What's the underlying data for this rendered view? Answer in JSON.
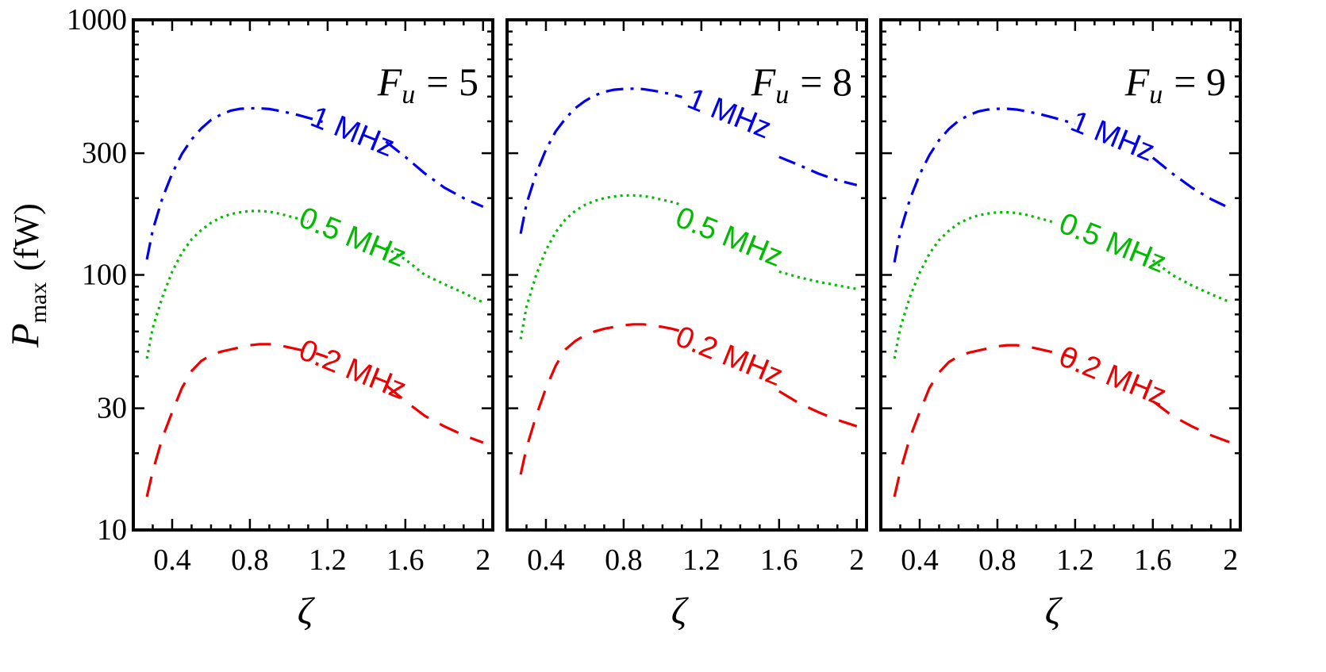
{
  "ylabel_main": "P",
  "ylabel_sub": "max",
  "ylabel_unit": "(fW)",
  "xlabel": "ζ",
  "chart_data": [
    {
      "type": "line",
      "annotation": {
        "symbol": "F",
        "subscript": "u",
        "relation": "= 5"
      },
      "xlabel": "ζ",
      "ylabel": "Pmax (fW)",
      "yscale": "log",
      "xlim": [
        0.2,
        2.05
      ],
      "ylim": [
        10,
        1000
      ],
      "xticks": [
        0.4,
        0.8,
        1.2,
        1.6,
        2
      ],
      "xtick_labels": [
        "0.4",
        "0.8",
        "1.2",
        "1.6",
        "2"
      ],
      "yticks": [
        10,
        30,
        100,
        300,
        1000
      ],
      "ytick_labels": [
        "10",
        "30",
        "100",
        "300",
        "1000"
      ],
      "series": [
        {
          "name": "1 MHz",
          "label": "1 MHz",
          "color": "#0000ee",
          "style": "dashdot",
          "x": [
            0.27,
            0.3,
            0.35,
            0.4,
            0.45,
            0.5,
            0.55,
            0.6,
            0.65,
            0.7,
            0.75,
            0.8,
            0.85,
            0.9,
            0.95,
            1.0,
            1.05,
            1.1,
            1.15,
            1.2,
            1.25,
            1.3,
            1.35,
            1.4,
            1.5,
            1.6,
            1.7,
            1.8,
            1.9,
            2.0
          ],
          "y": [
            115,
            150,
            200,
            250,
            298,
            340,
            375,
            405,
            425,
            440,
            448,
            450,
            450,
            447,
            440,
            432,
            423,
            413,
            403,
            393,
            383,
            373,
            363,
            353,
            333,
            290,
            250,
            220,
            200,
            185
          ]
        },
        {
          "name": "0.5 MHz",
          "label": "0.5 MHz",
          "color": "#00bb00",
          "style": "dotted",
          "x": [
            0.27,
            0.3,
            0.35,
            0.4,
            0.45,
            0.5,
            0.55,
            0.6,
            0.65,
            0.7,
            0.75,
            0.8,
            0.85,
            0.9,
            0.95,
            1.0,
            1.05,
            1.1,
            1.5,
            1.6,
            1.7,
            1.8,
            1.9,
            2.0
          ],
          "y": [
            47,
            62,
            82,
            103,
            122,
            138,
            150,
            160,
            168,
            173,
            176,
            178,
            178,
            177,
            174,
            170,
            166,
            162,
            128,
            115,
            100,
            92,
            85,
            78
          ]
        },
        {
          "name": "0.2 MHz",
          "label": "0.2 MHz",
          "color": "#ee0000",
          "style": "dashed",
          "x": [
            0.27,
            0.3,
            0.35,
            0.4,
            0.45,
            0.5,
            0.55,
            0.6,
            0.65,
            0.7,
            0.75,
            0.8,
            0.85,
            0.9,
            0.95,
            1.0,
            1.05,
            1.1,
            1.15,
            1.2,
            1.5,
            1.6,
            1.7,
            1.8,
            1.9,
            2.0
          ],
          "y": [
            13.5,
            17,
            23,
            29,
            36,
            42,
            46,
            48.5,
            50,
            51,
            52,
            53,
            53.5,
            53.5,
            53,
            52,
            51,
            50,
            49,
            47.5,
            37,
            32,
            28,
            25.5,
            23.5,
            22
          ]
        }
      ]
    },
    {
      "type": "line",
      "annotation": {
        "symbol": "F",
        "subscript": "u",
        "relation": "= 8"
      },
      "xlabel": "ζ",
      "ylabel": "Pmax (fW)",
      "yscale": "log",
      "xlim": [
        0.2,
        2.05
      ],
      "ylim": [
        10,
        1000
      ],
      "xticks": [
        0.4,
        0.8,
        1.2,
        1.6,
        2
      ],
      "xtick_labels": [
        "0.4",
        "0.8",
        "1.2",
        "1.6",
        "2"
      ],
      "yticks": [
        10,
        30,
        100,
        300,
        1000
      ],
      "ytick_labels": [
        "10",
        "30",
        "100",
        "300",
        "1000"
      ],
      "series": [
        {
          "name": "1 MHz",
          "label": "1 MHz",
          "color": "#0000ee",
          "style": "dashdot",
          "x": [
            0.27,
            0.3,
            0.35,
            0.4,
            0.45,
            0.5,
            0.55,
            0.6,
            0.65,
            0.7,
            0.75,
            0.8,
            0.85,
            0.9,
            0.95,
            1.0,
            1.05,
            1.1,
            1.15,
            1.2,
            1.25,
            1.3,
            1.35,
            1.4,
            1.6,
            1.7,
            1.8,
            1.9,
            2.0
          ],
          "y": [
            145,
            190,
            250,
            310,
            365,
            410,
            450,
            480,
            505,
            522,
            532,
            536,
            537,
            535,
            528,
            520,
            510,
            498,
            485,
            472,
            458,
            444,
            430,
            415,
            290,
            270,
            250,
            235,
            225
          ]
        },
        {
          "name": "0.5 MHz",
          "label": "0.5 MHz",
          "color": "#00bb00",
          "style": "dotted",
          "x": [
            0.27,
            0.3,
            0.35,
            0.4,
            0.45,
            0.5,
            0.55,
            0.6,
            0.65,
            0.7,
            0.75,
            0.8,
            0.85,
            0.9,
            0.95,
            1.0,
            1.05,
            1.1,
            1.6,
            1.7,
            1.8,
            1.9,
            2.0
          ],
          "y": [
            56,
            75,
            100,
            125,
            147,
            165,
            178,
            188,
            195,
            200,
            203,
            205,
            205,
            204,
            201,
            197,
            193,
            188,
            103,
            98,
            94,
            91,
            88
          ]
        },
        {
          "name": "0.2 MHz",
          "label": "0.2 MHz",
          "color": "#ee0000",
          "style": "dashed",
          "x": [
            0.27,
            0.3,
            0.35,
            0.4,
            0.45,
            0.5,
            0.55,
            0.6,
            0.65,
            0.7,
            0.75,
            0.8,
            0.85,
            0.9,
            0.95,
            1.0,
            1.05,
            1.1,
            1.15,
            1.2,
            1.6,
            1.7,
            1.8,
            1.9,
            2.0
          ],
          "y": [
            16.5,
            21,
            28,
            36,
            44,
            51,
            55,
            58,
            60,
            61.5,
            62.5,
            63.5,
            64,
            64,
            63.5,
            62.5,
            61.5,
            60,
            58.5,
            57,
            35,
            31.5,
            29,
            27,
            25.5
          ]
        }
      ]
    },
    {
      "type": "line",
      "annotation": {
        "symbol": "F",
        "subscript": "u",
        "relation": "= 9"
      },
      "xlabel": "ζ",
      "ylabel": "Pmax (fW)",
      "yscale": "log",
      "xlim": [
        0.2,
        2.05
      ],
      "ylim": [
        10,
        1000
      ],
      "xticks": [
        0.4,
        0.8,
        1.2,
        1.6,
        2
      ],
      "xtick_labels": [
        "0.4",
        "0.8",
        "1.2",
        "1.6",
        "2"
      ],
      "yticks": [
        10,
        30,
        100,
        300,
        1000
      ],
      "ytick_labels": [
        "10",
        "30",
        "100",
        "300",
        "1000"
      ],
      "series": [
        {
          "name": "1 MHz",
          "label": "1 MHz",
          "color": "#0000ee",
          "style": "dashdot",
          "x": [
            0.27,
            0.3,
            0.35,
            0.4,
            0.45,
            0.5,
            0.55,
            0.6,
            0.65,
            0.7,
            0.75,
            0.8,
            0.85,
            0.9,
            0.95,
            1.0,
            1.05,
            1.1,
            1.15,
            1.2,
            1.25,
            1.3,
            1.35,
            1.4,
            1.5,
            1.6,
            1.7,
            1.8,
            1.9,
            2.0
          ],
          "y": [
            112,
            148,
            198,
            248,
            295,
            338,
            373,
            402,
            422,
            437,
            445,
            448,
            448,
            445,
            438,
            430,
            421,
            411,
            401,
            391,
            381,
            371,
            361,
            351,
            331,
            288,
            250,
            220,
            198,
            182
          ]
        },
        {
          "name": "0.5 MHz",
          "label": "0.5 MHz",
          "color": "#00bb00",
          "style": "dotted",
          "x": [
            0.27,
            0.3,
            0.35,
            0.4,
            0.45,
            0.5,
            0.55,
            0.6,
            0.65,
            0.7,
            0.75,
            0.8,
            0.85,
            0.9,
            0.95,
            1.0,
            1.05,
            1.1,
            1.5,
            1.6,
            1.7,
            1.8,
            1.9,
            2.0
          ],
          "y": [
            47,
            62,
            82,
            102,
            121,
            137,
            149,
            159,
            166,
            171,
            174,
            176,
            176,
            175,
            172,
            168,
            164,
            160,
            126,
            114,
            100,
            91,
            84,
            78
          ]
        },
        {
          "name": "0.2 MHz",
          "label": "0.2 MHz",
          "color": "#ee0000",
          "style": "dashed",
          "x": [
            0.27,
            0.3,
            0.35,
            0.4,
            0.45,
            0.5,
            0.55,
            0.6,
            0.65,
            0.7,
            0.75,
            0.8,
            0.85,
            0.9,
            0.95,
            1.0,
            1.05,
            1.1,
            1.15,
            1.2,
            1.5,
            1.6,
            1.7,
            1.8,
            1.9,
            2.0
          ],
          "y": [
            13.5,
            17,
            23,
            29,
            36,
            41.5,
            45.5,
            48,
            49.5,
            50.5,
            51.5,
            52.5,
            53,
            53,
            52.5,
            51.5,
            50.5,
            49.5,
            48.5,
            47,
            37,
            32,
            28,
            25.5,
            23.5,
            22
          ]
        }
      ]
    }
  ]
}
